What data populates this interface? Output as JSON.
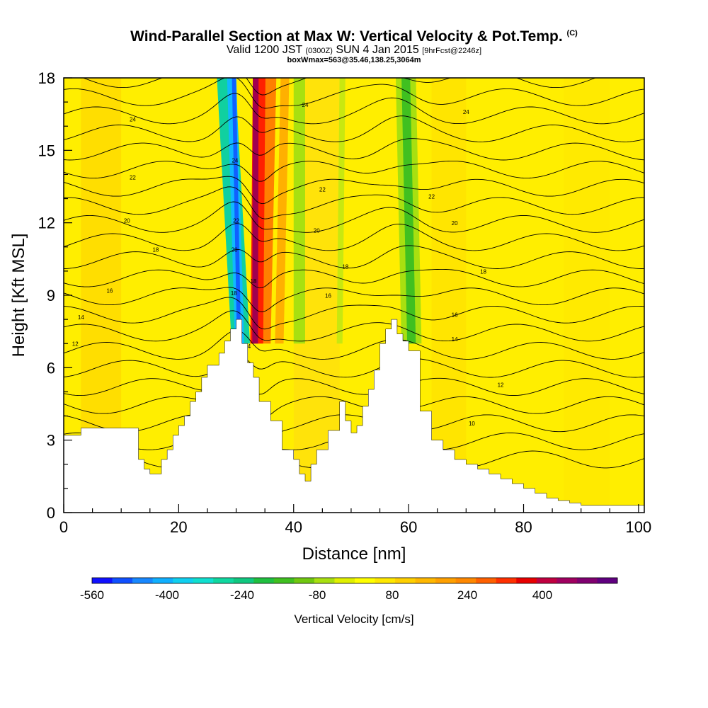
{
  "header": {
    "title_main": "Wind-Parallel Section at Max W: Vertical Velocity & Pot.Temp.",
    "title_copyright": "(C)",
    "valid_prefix": "Valid 1200 JST",
    "valid_utc": "(0300Z)",
    "valid_date": "SUN 4 Jan 2015",
    "valid_fcst": "[9hrFcst@2246z]",
    "boxinfo": "boxWmax=563@35.46,138.25,3064m"
  },
  "colorbar": {
    "label": "Vertical Velocity [cm/s]",
    "tick_labels": [
      "-560",
      "-400",
      "-240",
      "-80",
      "80",
      "240",
      "400"
    ],
    "colors": [
      "#1010ff",
      "#1050ff",
      "#1888ff",
      "#10b0ff",
      "#10d0f0",
      "#10e0d0",
      "#10d8a0",
      "#10c880",
      "#20c040",
      "#40c020",
      "#70c810",
      "#a8e010",
      "#e0f000",
      "#ffff00",
      "#ffe800",
      "#ffd000",
      "#ffb800",
      "#ffa000",
      "#ff8800",
      "#ff6000",
      "#ff3000",
      "#e80000",
      "#c00040",
      "#a00060",
      "#800070",
      "#600080"
    ]
  },
  "chart_data": {
    "type": "heatmap",
    "title": "Wind-Parallel Section at Max W: Vertical Velocity & Pot.Temp.",
    "xlabel": "Distance [nm]",
    "ylabel": "Height [Kft MSL]",
    "xlim": [
      0,
      101
    ],
    "ylim": [
      0,
      18
    ],
    "x_ticks": [
      "0",
      "20",
      "40",
      "60",
      "80",
      "100"
    ],
    "y_ticks": [
      "0",
      "3",
      "6",
      "9",
      "12",
      "15",
      "18"
    ],
    "field": "Vertical Velocity",
    "field_units": "cm/s",
    "colorbar_range": [
      -560,
      560
    ],
    "max_w": 563,
    "contour_field": "Potential Temperature",
    "contour_labels": [
      "24",
      "22",
      "20",
      "18",
      "16",
      "14",
      "12",
      "10"
    ],
    "terrain_profile": {
      "x": [
        0,
        3,
        8,
        11,
        13,
        14,
        15,
        17,
        18,
        19,
        20,
        21,
        22,
        23,
        24,
        25,
        26,
        27,
        28,
        29,
        30,
        31,
        32,
        33,
        34,
        36,
        38,
        40,
        41,
        42,
        43,
        44,
        46,
        48,
        49,
        50,
        51,
        52,
        53,
        54,
        55,
        56,
        57,
        58,
        59,
        60,
        62,
        64,
        66,
        68,
        70,
        72,
        74,
        76,
        78,
        80,
        82,
        84,
        86,
        88,
        90,
        95,
        101
      ],
      "height_kft": [
        3.2,
        3.5,
        3.5,
        3.5,
        2.2,
        1.8,
        1.6,
        2.2,
        2.6,
        3.2,
        3.6,
        4.0,
        4.6,
        5.0,
        5.6,
        6.1,
        6.1,
        6.6,
        7.1,
        7.6,
        8.0,
        7.0,
        6.2,
        5.6,
        4.6,
        3.8,
        2.6,
        2.2,
        1.6,
        1.3,
        2.0,
        2.6,
        3.4,
        4.6,
        3.8,
        3.3,
        3.6,
        4.4,
        5.1,
        5.9,
        7.0,
        7.6,
        8.0,
        7.4,
        7.1,
        6.7,
        4.2,
        3.0,
        2.6,
        2.2,
        2.0,
        1.8,
        1.6,
        1.4,
        1.2,
        1.0,
        0.8,
        0.6,
        0.5,
        0.4,
        0.3,
        0.3,
        0.3
      ]
    },
    "w_bands": [
      {
        "x_bottom": 31,
        "x_top": 29,
        "w": -420
      },
      {
        "x_bottom": 33,
        "x_top": 33.5,
        "w": 563
      },
      {
        "x_bottom": 60,
        "x_top": 60,
        "w": -180
      },
      {
        "x_bottom": 40,
        "x_top": 40,
        "w": -120
      }
    ]
  }
}
